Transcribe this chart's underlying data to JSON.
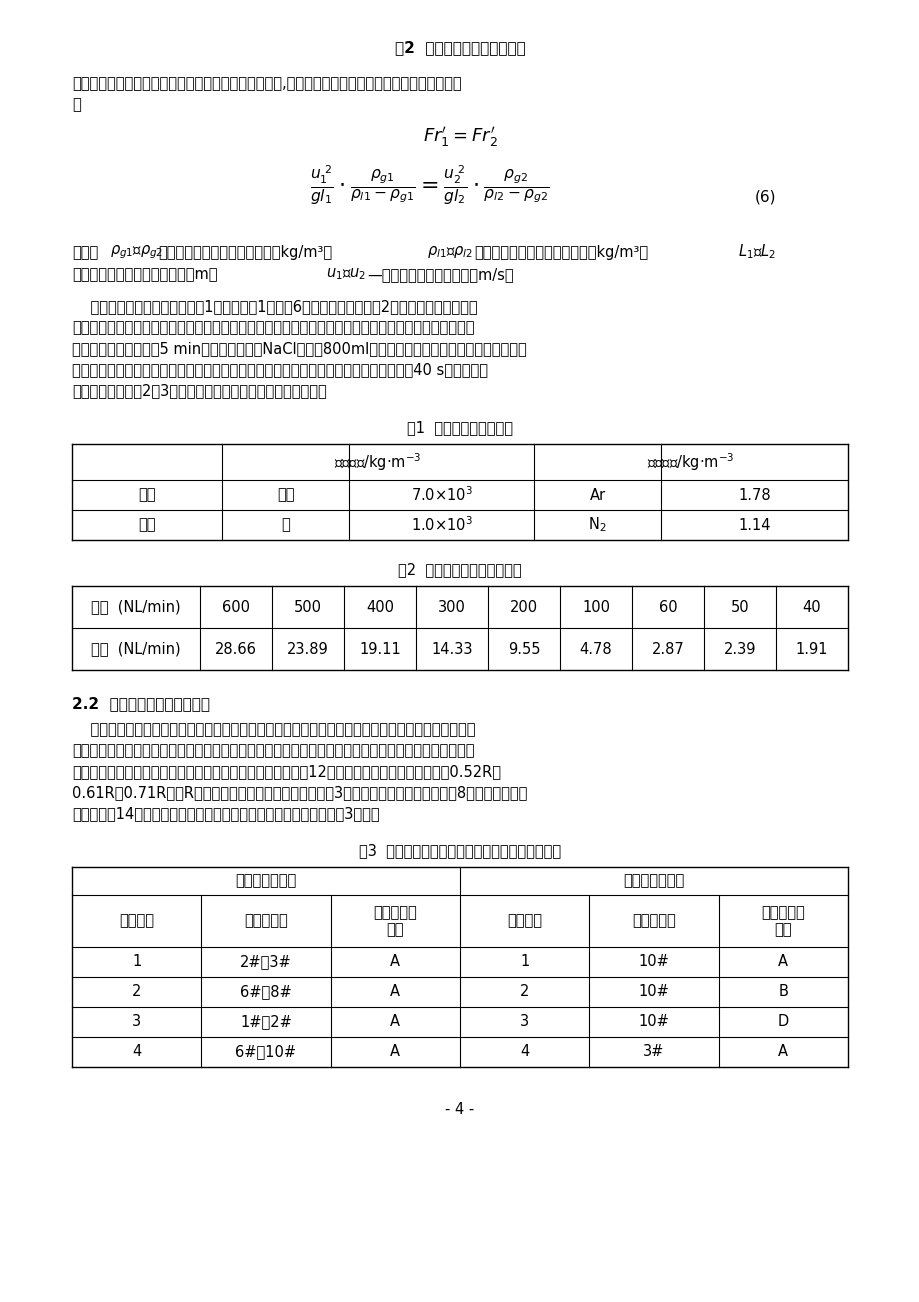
{
  "title": "图2  物理模拟实验装置示意图",
  "formula_number": "(6)",
  "table1_title": "表1  模拟实验介质的物性",
  "table2_title": "表2  原型与模型底吹气体流量",
  "section_title": "2.2  钢包底吹透气砖布置方案",
  "table3_title": "表3  钢包底透气砖分布及液面不同位置加入示踪剂",
  "page_num": "- 4 -",
  "background": "#ffffff",
  "text_color": "#000000",
  "para1_line1": "引起钢包内流体流动的动力主要是底吹气体上升时浮力,因此采用修正弗鲁德准数作为主要相似准数。",
  "para1_line2": "即",
  "para4_lines": [
    "    实验采用各种介质的物性如表1所示，由表1和式（6）计算模型流量如表2所示。钢包内混匀时间",
    "的测定，是采用两个探头固定在钢包内壁上不同高度。每个透气砖的底吹流量分别采用流量计控制。测定",
    "前模型钢包内流动稳定5 min，然后采用饱和NaCl水溶液800ml的示踪剂，从钢包液面上一次加入，并同",
    "时计时。采用电导率仪和电导函数记录仪以及计算机记录，直至曲线出现平衡稳定后延续40 s左右停止。",
    "上述测定内容重复2～3次，采用平均值确定一组实验结果数据。"
  ],
  "para5_lines": [
    "    目前国内钢厂钢包底吹透气砖绝大多数采用一个或者两个，容量大的采用两个，容量比较小的采用一",
    "个。采用两个或者一个透气砖的原则，主要是以钢包内钢液混匀时间短为依据，并且还要适应现场加料、",
    "喂线等操作工艺的需要。采用对比实验方法，在钢包底部设计12个透气砖位置，它们分别布置在0.52R、",
    "0.61R、0.71R上（R为钢包底部半径），其分布位置如图3所示。其中单透气砖优化实验8组；双透气砖组",
    "合优化实验14组。透气砖在包底不同组合方案和示踪剂加入位置如表3所示。"
  ],
  "t1_row1": [
    "原型",
    "钢水",
    "7.0×10³",
    "Ar",
    "1.78"
  ],
  "t1_row2": [
    "模型",
    "水",
    "1.0×10³",
    "N₂",
    "1.14"
  ],
  "t2_row1": [
    "原型  (NL/min)",
    "600",
    "500",
    "400",
    "300",
    "200",
    "100",
    "60",
    "50",
    "40"
  ],
  "t2_row2": [
    "模型  (NL/min)",
    "28.66",
    "23.89",
    "19.11",
    "14.33",
    "9.55",
    "4.78",
    "2.87",
    "2.39",
    "1.91"
  ],
  "t3_data": [
    [
      "1",
      "2#、3#",
      "A",
      "1",
      "10#",
      "A"
    ],
    [
      "2",
      "6#、8#",
      "A",
      "2",
      "10#",
      "B"
    ],
    [
      "3",
      "1#、2#",
      "A",
      "3",
      "10#",
      "D"
    ],
    [
      "4",
      "6#、10#",
      "A",
      "4",
      "3#",
      "A"
    ]
  ]
}
